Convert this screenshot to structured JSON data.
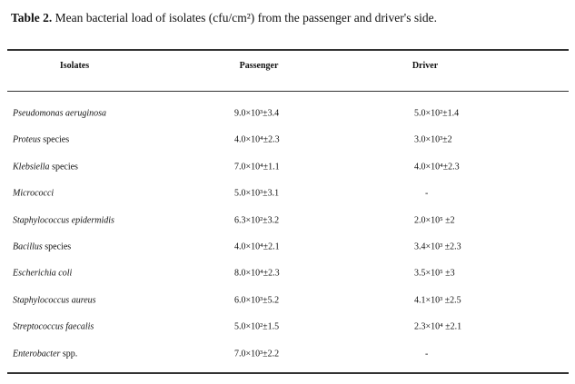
{
  "caption": {
    "label": "Table 2.",
    "text": "Mean bacterial load of isolates (cfu/cm²) from the passenger and driver's side."
  },
  "table": {
    "headers": [
      "Isolates",
      "Passenger",
      "Driver"
    ],
    "rows": [
      {
        "isolate": [
          "Pseudomonas aeruginosa",
          ""
        ],
        "passenger": "9.0×10³±3.4",
        "driver": "5.0×10²±1.4"
      },
      {
        "isolate": [
          "Proteus",
          "species"
        ],
        "passenger": "4.0×10⁴±2.3",
        "driver": "3.0×10³±2"
      },
      {
        "isolate": [
          "Klebsiella",
          "species"
        ],
        "passenger": "7.0×10⁴±1.1",
        "driver": "4.0×10⁴±2.3"
      },
      {
        "isolate": [
          "Micrococci",
          ""
        ],
        "passenger": "5.0×10³±3.1",
        "driver": "-"
      },
      {
        "isolate": [
          "Staphylococcus epidermidis",
          ""
        ],
        "passenger": "6.3×10²±3.2",
        "driver": "2.0×10⁵ ±2"
      },
      {
        "isolate": [
          "Bacillus",
          "species"
        ],
        "passenger": "4.0×10⁴±2.1",
        "driver": "3.4×10³ ±2.3"
      },
      {
        "isolate": [
          "Escherichia coli",
          ""
        ],
        "passenger": "8.0×10⁴±2.3",
        "driver": "3.5×10⁵ ±3"
      },
      {
        "isolate": [
          "Staphylococcus aureus",
          ""
        ],
        "passenger": "6.0×10³±5.2",
        "driver": "4.1×10³ ±2.5"
      },
      {
        "isolate": [
          "Streptococcus faecalis",
          ""
        ],
        "passenger": "5.0×10²±1.5",
        "driver": "2.3×10⁴ ±2.1"
      },
      {
        "isolate": [
          "Enterobacter",
          "spp."
        ],
        "passenger": "7.0×10³±2.2",
        "driver": "-"
      }
    ]
  }
}
